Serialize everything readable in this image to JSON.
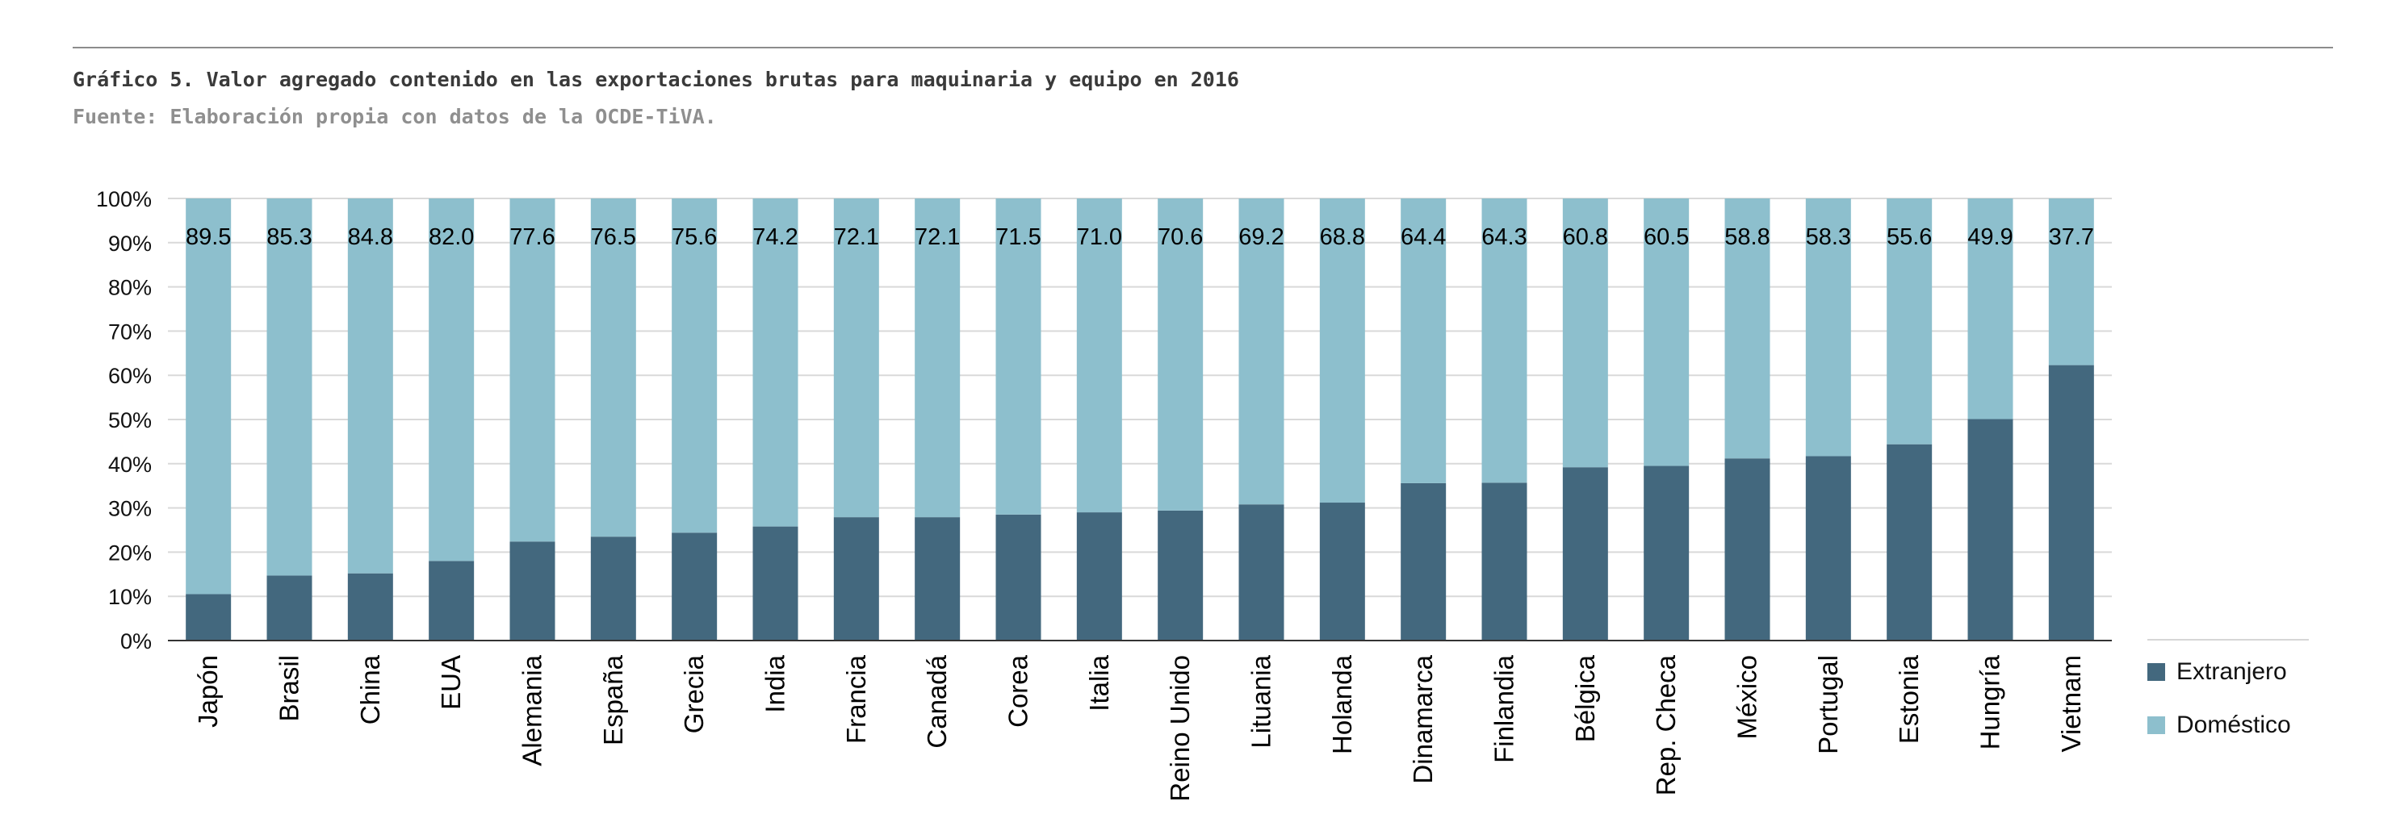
{
  "header": {
    "title": "Gráfico 5. Valor agregado contenido en las exportaciones brutas para maquinaria y equipo en 2016",
    "source": "Fuente: Elaboración propia con datos de la OCDE-TiVA."
  },
  "colors": {
    "foreign": "#43687e",
    "domestic": "#8dbfcd",
    "grid": "#d9d9d9",
    "axis": "#333333"
  },
  "chart_data": {
    "type": "bar",
    "stacked": true,
    "percent": true,
    "categories": [
      "Japón",
      "Brasil",
      "China",
      "EUA",
      "Alemania",
      "España",
      "Grecia",
      "India",
      "Francia",
      "Canadá",
      "Corea",
      "Italia",
      "Reino Unido",
      "Lituania",
      "Holanda",
      "Dinamarca",
      "Finlandia",
      "Bélgica",
      "Rep. Checa",
      "México",
      "Portugal",
      "Estonia",
      "Hungría",
      "Vietnam"
    ],
    "series": [
      {
        "name": "Extranjero",
        "values": [
          10.5,
          14.7,
          15.2,
          18.0,
          22.4,
          23.5,
          24.4,
          25.8,
          27.9,
          27.9,
          28.5,
          29.0,
          29.4,
          30.8,
          31.2,
          35.6,
          35.7,
          39.2,
          39.5,
          41.2,
          41.7,
          44.4,
          50.1,
          62.3
        ]
      },
      {
        "name": "Doméstico",
        "values": [
          89.5,
          85.3,
          84.8,
          82.0,
          77.6,
          76.5,
          75.6,
          74.2,
          72.1,
          72.1,
          71.5,
          71.0,
          70.6,
          69.2,
          68.8,
          64.4,
          64.3,
          60.8,
          60.5,
          58.8,
          58.3,
          55.6,
          49.9,
          37.7
        ]
      }
    ],
    "data_labels": [
      "89.5",
      "85.3",
      "84.8",
      "82.0",
      "77.6",
      "76.5",
      "75.6",
      "74.2",
      "72.1",
      "72.1",
      "71.5",
      "71.0",
      "70.6",
      "69.2",
      "68.8",
      "64.4",
      "64.3",
      "60.8",
      "60.5",
      "58.8",
      "58.3",
      "55.6",
      "49.9",
      "37.7"
    ],
    "yticks": [
      "0%",
      "10%",
      "20%",
      "30%",
      "40%",
      "50%",
      "60%",
      "70%",
      "80%",
      "90%",
      "100%"
    ],
    "ylim": [
      0,
      100
    ],
    "grid": true,
    "legend_position": "right"
  },
  "legend": {
    "items": [
      {
        "label": "Extranjero"
      },
      {
        "label": "Doméstico"
      }
    ]
  }
}
